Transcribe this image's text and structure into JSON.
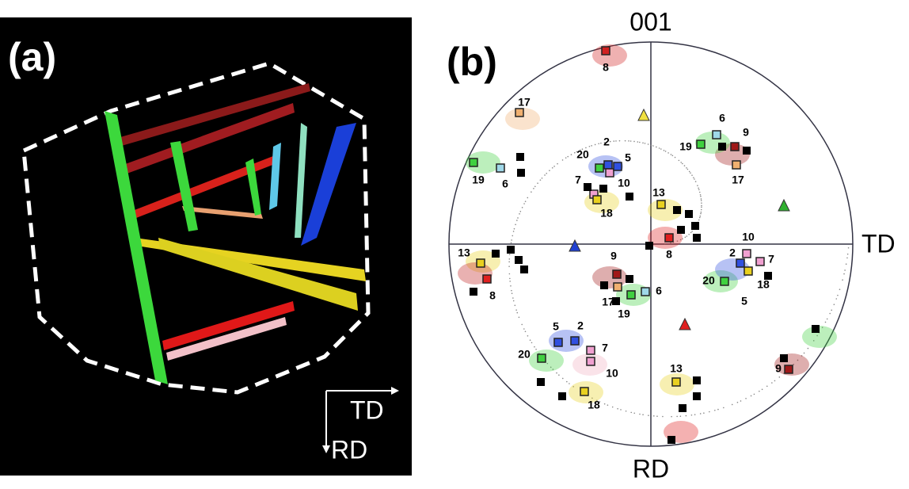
{
  "panel_a": {
    "label": "(a)",
    "axis_labels": [
      "TD",
      "RD"
    ]
  },
  "panel_b": {
    "label": "(b)",
    "pole": "001",
    "axis_labels": [
      "TD",
      "RD"
    ],
    "variant_labels": [
      "8",
      "17",
      "2",
      "5",
      "20",
      "7",
      "10",
      "18",
      "13",
      "19",
      "6",
      "6",
      "9",
      "19",
      "17",
      "10",
      "13",
      "8",
      "9",
      "2",
      "7",
      "20",
      "18",
      "5",
      "17",
      "6",
      "19",
      "5",
      "2",
      "7",
      "20",
      "10",
      "13",
      "18",
      "9",
      "8"
    ]
  }
}
